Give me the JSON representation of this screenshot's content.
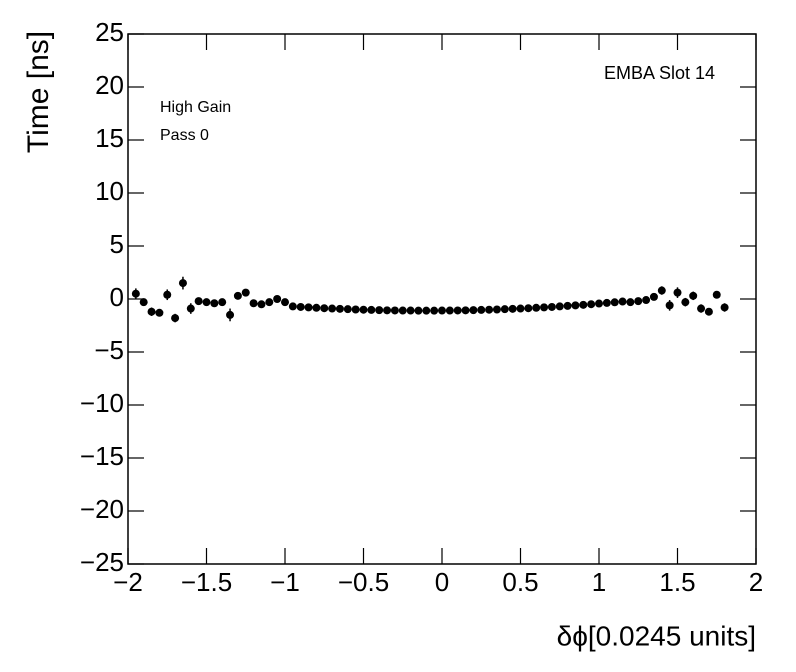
{
  "chart_data": {
    "type": "scatter",
    "x_label": "δϕ[0.0245 units]",
    "y_label": "Time [ns]",
    "annotations": [
      "EMBA Slot 14",
      "High Gain",
      "Pass 0"
    ],
    "color": "#000000",
    "x": [
      -1.95,
      -1.9,
      -1.85,
      -1.8,
      -1.75,
      -1.7,
      -1.65,
      -1.6,
      -1.55,
      -1.5,
      -1.45,
      -1.4,
      -1.35,
      -1.3,
      -1.25,
      -1.2,
      -1.15,
      -1.1,
      -1.05,
      -1.0,
      -0.95,
      -0.9,
      -0.85,
      -0.8,
      -0.75,
      -0.7,
      -0.65,
      -0.6,
      -0.55,
      -0.5,
      -0.45,
      -0.4,
      -0.35,
      -0.3,
      -0.25,
      -0.2,
      -0.15,
      -0.1,
      -0.05,
      0.0,
      0.05,
      0.1,
      0.15,
      0.2,
      0.25,
      0.3,
      0.35,
      0.4,
      0.45,
      0.5,
      0.55,
      0.6,
      0.65,
      0.7,
      0.75,
      0.8,
      0.85,
      0.9,
      0.95,
      1.0,
      1.05,
      1.1,
      1.15,
      1.2,
      1.25,
      1.3,
      1.35,
      1.4,
      1.45,
      1.5,
      1.55,
      1.6,
      1.65,
      1.7,
      1.75,
      1.8
    ],
    "values": [
      0.5,
      -0.3,
      -1.2,
      -1.3,
      0.4,
      -1.8,
      1.5,
      -0.9,
      -0.2,
      -0.3,
      -0.4,
      -0.3,
      -1.5,
      0.3,
      0.6,
      -0.4,
      -0.5,
      -0.3,
      0.0,
      -0.3,
      -0.7,
      -0.75,
      -0.79,
      -0.83,
      -0.87,
      -0.9,
      -0.93,
      -0.96,
      -0.99,
      -1.01,
      -1.03,
      -1.05,
      -1.07,
      -1.08,
      -1.09,
      -1.09,
      -1.1,
      -1.1,
      -1.1,
      -1.09,
      -1.09,
      -1.08,
      -1.07,
      -1.05,
      -1.03,
      -1.01,
      -0.99,
      -0.96,
      -0.93,
      -0.9,
      -0.87,
      -0.83,
      -0.79,
      -0.75,
      -0.7,
      -0.65,
      -0.6,
      -0.55,
      -0.49,
      -0.43,
      -0.37,
      -0.31,
      -0.24,
      -0.3,
      -0.2,
      -0.1,
      0.2,
      0.8,
      -0.6,
      0.6,
      -0.3,
      0.3,
      -0.9,
      -1.2,
      0.4,
      -0.8
    ],
    "errors": [
      0.5,
      0.3,
      0.4,
      0.3,
      0.5,
      0.4,
      0.6,
      0.5,
      0.3,
      0.3,
      0.3,
      0.3,
      0.6,
      0.3,
      0.3,
      0.2,
      0.2,
      0.2,
      0.2,
      0.2,
      0.1,
      0.1,
      0.1,
      0.1,
      0.1,
      0.1,
      0.1,
      0.1,
      0.1,
      0.1,
      0.1,
      0.1,
      0.1,
      0.1,
      0.1,
      0.1,
      0.1,
      0.1,
      0.1,
      0.1,
      0.1,
      0.1,
      0.1,
      0.1,
      0.1,
      0.1,
      0.1,
      0.1,
      0.1,
      0.1,
      0.1,
      0.1,
      0.1,
      0.1,
      0.1,
      0.1,
      0.1,
      0.1,
      0.1,
      0.1,
      0.1,
      0.1,
      0.1,
      0.2,
      0.2,
      0.3,
      0.3,
      0.4,
      0.5,
      0.5,
      0.4,
      0.4,
      0.4,
      0.3,
      0.3,
      0.4
    ],
    "xlim": [
      -2,
      2
    ],
    "ylim": [
      -25,
      25
    ],
    "xticks": [
      {
        "value": -2,
        "label": "−2"
      },
      {
        "value": -1.5,
        "label": "−1.5"
      },
      {
        "value": -1,
        "label": "−1"
      },
      {
        "value": -0.5,
        "label": "−0.5"
      },
      0,
      0.5,
      1,
      1.5,
      2
    ],
    "yticks": [
      {
        "value": -25,
        "label": "−25"
      },
      {
        "value": -20,
        "label": "−20"
      },
      {
        "value": -15,
        "label": "−15"
      },
      {
        "value": -10,
        "label": "−10"
      },
      {
        "value": -5,
        "label": "−5"
      },
      0,
      5,
      10,
      15,
      20,
      25
    ],
    "grid": false
  }
}
